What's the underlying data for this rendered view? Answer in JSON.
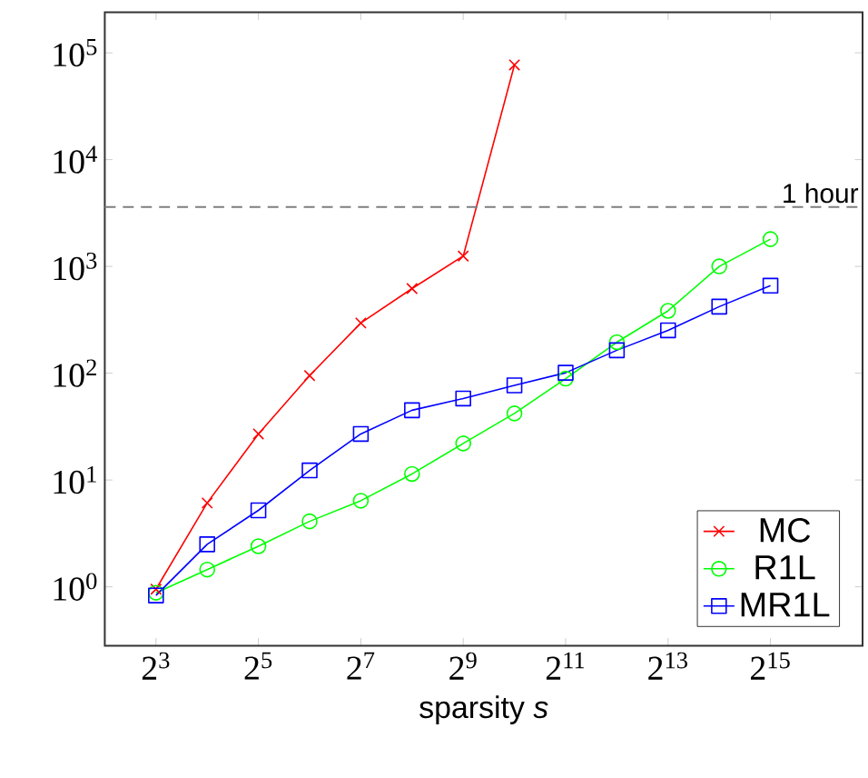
{
  "chart_data": {
    "type": "line",
    "xlabel": "sparsity *s*",
    "log": "xy",
    "grid": false,
    "legend": "bottom right",
    "xlim": [
      4,
      114000
    ],
    "ylim": [
      0.28,
      240000
    ],
    "xticks": [
      {
        "value": 8,
        "label": "2$^{3}$"
      },
      {
        "value": 32,
        "label": "2$^{5}$"
      },
      {
        "value": 128,
        "label": "2$^{7}$"
      },
      {
        "value": 512,
        "label": "2$^{9}$"
      },
      {
        "value": 2048,
        "label": "2$^{11}$"
      },
      {
        "value": 8192,
        "label": "2$^{13}$"
      },
      {
        "value": 32768,
        "label": "2$^{15}$"
      }
    ],
    "yticks": [
      {
        "value": 1,
        "label": "10$^{0}$"
      },
      {
        "value": 10,
        "label": "10$^{1}$"
      },
      {
        "value": 100,
        "label": "10$^{2}$"
      },
      {
        "value": 1000,
        "label": "10$^{3}$"
      },
      {
        "value": 10000,
        "label": "10$^{4}$"
      },
      {
        "value": 100000,
        "label": "10$^{5}$"
      }
    ],
    "ref_lines": [
      {
        "axis": "y",
        "value": 3600,
        "label": "1 hour",
        "color": "#7f7f7f",
        "line_style": "dashed"
      }
    ],
    "series": [
      {
        "name": "MC",
        "color": "#ff0000",
        "marker": "cross",
        "x": [
          8,
          16,
          32,
          64,
          128,
          256,
          512,
          1024
        ],
        "values": [
          0.95,
          6.1,
          27,
          95,
          295,
          620,
          1250,
          77000
        ]
      },
      {
        "name": "R1L",
        "color": "#00ff00",
        "marker": "circle",
        "x": [
          8,
          16,
          32,
          64,
          128,
          256,
          512,
          1024,
          2048,
          4096,
          8192,
          16384,
          32768
        ],
        "values": [
          0.88,
          1.45,
          2.4,
          4.1,
          6.4,
          11.4,
          22,
          42,
          89,
          195,
          384,
          1000,
          1800
        ]
      },
      {
        "name": "MR1L",
        "color": "#0000ff",
        "marker": "square",
        "x": [
          8,
          16,
          32,
          64,
          128,
          256,
          512,
          1024,
          2048,
          4096,
          8192,
          16384,
          32768
        ],
        "values": [
          0.83,
          2.5,
          5.2,
          12.3,
          27,
          45,
          58,
          77,
          101,
          164,
          252,
          420,
          660
        ]
      }
    ]
  }
}
